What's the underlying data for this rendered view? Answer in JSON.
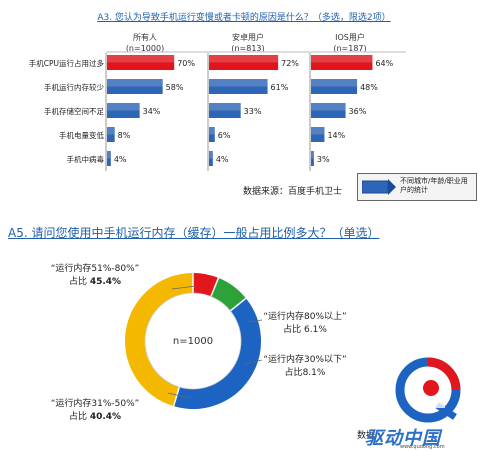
{
  "chart_data": [
    {
      "type": "bar",
      "orientation": "horizontal",
      "title": "A3. 您认为导致手机运行变慢或者卡顿的原因是什么？（多选，限选2项）",
      "categories": [
        "手机CPU运行占用过多",
        "手机运行内存较少",
        "手机存储空间不足",
        "手机电量变低",
        "手机中病毒"
      ],
      "series": [
        {
          "name": "所有人",
          "sample": "(n=1000)",
          "values": [
            70,
            58,
            34,
            8,
            4
          ],
          "labels": [
            "70%",
            "58%",
            "34%",
            "8%",
            "4%"
          ]
        },
        {
          "name": "安卓用户",
          "sample": "(n=813)",
          "values": [
            72,
            61,
            33,
            6,
            4
          ],
          "labels": [
            "72%",
            "61%",
            "33%",
            "6%",
            "4%"
          ]
        },
        {
          "name": "IOS用户",
          "sample": "(n=187)",
          "values": [
            64,
            48,
            36,
            14,
            3
          ],
          "labels": [
            "64%",
            "48%",
            "36%",
            "14%",
            "3%"
          ]
        }
      ],
      "highlight_color": "#e0141b",
      "bar_color": "#2e66b7",
      "source": "数据来源：百度手机卫士",
      "legend_text": "不同城市/年龄/职业用户的统计"
    },
    {
      "type": "pie",
      "variant": "donut",
      "title": "A5. 请问您使用中手机运行内存（缓存）一般占用比例多大？（单选）",
      "center_text": "n=1000",
      "slices": [
        {
          "label": "“运行内存51%-80%”",
          "share_label": "占比",
          "share": "45.4%",
          "value": 45.4,
          "color": "#f5b800"
        },
        {
          "label": "“运行内存80%以上”",
          "share_label": "占比",
          "share": "6.1%",
          "value": 6.1,
          "color": "#e2161d"
        },
        {
          "label": "“运行内存30%以下”",
          "share_label": "占比",
          "share": "8.1%",
          "value": 8.1,
          "color": "#2ea23a"
        },
        {
          "label": "“运行内存31%-50%”",
          "share_label": "占比",
          "share": "40.4%",
          "value": 40.4,
          "color": "#1d64c2"
        }
      ],
      "source_partial": "数据"
    }
  ],
  "watermark": "驱动中国",
  "watermark_url": "www.qudong.com"
}
